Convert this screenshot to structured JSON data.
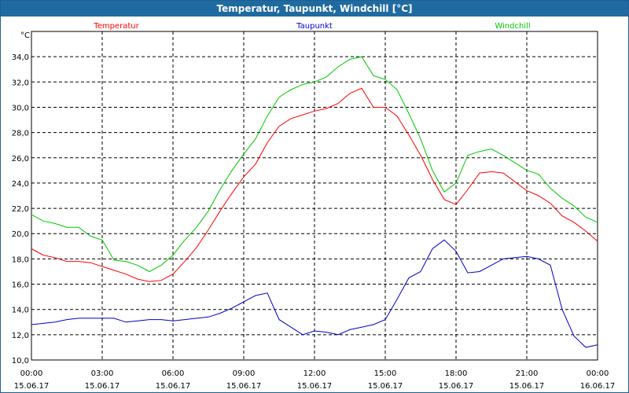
{
  "chart_data": {
    "type": "line",
    "title": "Temperatur, Taupunkt, Windchill [°C]",
    "ylabel": "°C",
    "xlabel": "",
    "ylim": [
      10,
      36
    ],
    "xlim": [
      0,
      24
    ],
    "grid": true,
    "y_ticks": [
      "10,0",
      "12,0",
      "14,0",
      "16,0",
      "18,0",
      "20,0",
      "22,0",
      "24,0",
      "26,0",
      "28,0",
      "30,0",
      "32,0",
      "34,0"
    ],
    "x_ticks": [
      {
        "time": "00:00",
        "date": "15.06.17"
      },
      {
        "time": "03:00",
        "date": "15.06.17"
      },
      {
        "time": "06:00",
        "date": "15.06.17"
      },
      {
        "time": "09:00",
        "date": "15.06.17"
      },
      {
        "time": "12:00",
        "date": "15.06.17"
      },
      {
        "time": "15:00",
        "date": "15.06.17"
      },
      {
        "time": "18:00",
        "date": "15.06.17"
      },
      {
        "time": "21:00",
        "date": "15.06.17"
      },
      {
        "time": "00:00",
        "date": "16.06.17"
      }
    ],
    "legend": [
      "Temperatur",
      "Taupunkt",
      "Windchill"
    ],
    "series": [
      {
        "name": "Temperatur",
        "color": "#ff0000",
        "x": [
          0,
          0.5,
          1,
          1.5,
          2,
          2.5,
          3,
          3.5,
          4,
          4.5,
          5,
          5.5,
          6,
          6.5,
          7,
          7.5,
          8,
          8.5,
          9,
          9.5,
          10,
          10.5,
          11,
          11.5,
          12,
          12.5,
          13,
          13.5,
          14,
          14.5,
          15,
          15.5,
          16,
          16.5,
          17,
          17.5,
          18,
          18.5,
          19,
          19.5,
          20,
          20.5,
          21,
          21.5,
          22,
          22.5,
          23,
          23.5,
          24
        ],
        "y": [
          18.8,
          18.3,
          18.1,
          17.8,
          17.8,
          17.7,
          17.4,
          17.1,
          16.8,
          16.4,
          16.2,
          16.3,
          16.8,
          17.8,
          18.9,
          20.3,
          21.8,
          23.2,
          24.5,
          25.5,
          27.2,
          28.5,
          29.1,
          29.4,
          29.7,
          29.9,
          30.3,
          31.1,
          31.5,
          30.0,
          30.0,
          29.3,
          27.8,
          26.2,
          24.3,
          22.7,
          22.3,
          23.5,
          24.8,
          24.9,
          24.8,
          24.1,
          23.4,
          23.0,
          22.4,
          21.4,
          20.9,
          20.2,
          19.4
        ]
      },
      {
        "name": "Taupunkt",
        "color": "#0000c8",
        "x": [
          0,
          0.5,
          1,
          1.5,
          2,
          2.5,
          3,
          3.5,
          4,
          4.5,
          5,
          5.5,
          6,
          6.5,
          7,
          7.5,
          8,
          8.5,
          9,
          9.5,
          10,
          10.5,
          11,
          11.5,
          12,
          12.5,
          13,
          13.5,
          14,
          14.5,
          15,
          15.5,
          16,
          16.5,
          17,
          17.5,
          18,
          18.5,
          19,
          19.5,
          20,
          20.5,
          21,
          21.5,
          22,
          22.5,
          23,
          23.5,
          24
        ],
        "y": [
          12.8,
          12.9,
          13.0,
          13.2,
          13.3,
          13.3,
          13.3,
          13.3,
          13.0,
          13.1,
          13.2,
          13.2,
          13.1,
          13.2,
          13.3,
          13.4,
          13.7,
          14.1,
          14.6,
          15.1,
          15.3,
          13.2,
          12.6,
          12.0,
          12.3,
          12.2,
          12.0,
          12.4,
          12.6,
          12.8,
          13.2,
          14.8,
          16.5,
          17.0,
          18.8,
          19.5,
          18.6,
          16.9,
          17.0,
          17.5,
          18.0,
          18.1,
          18.2,
          18.0,
          17.5,
          14.0,
          11.9,
          11.0,
          11.2
        ]
      },
      {
        "name": "Windchill",
        "color": "#00c800",
        "x": [
          0,
          0.5,
          1,
          1.5,
          2,
          2.5,
          3,
          3.5,
          4,
          4.5,
          5,
          5.5,
          6,
          6.5,
          7,
          7.5,
          8,
          8.5,
          9,
          9.5,
          10,
          10.5,
          11,
          11.5,
          12,
          12.5,
          13,
          13.5,
          14,
          14.5,
          15,
          15.5,
          16,
          16.5,
          17,
          17.5,
          18,
          18.5,
          19,
          19.5,
          20,
          20.5,
          21,
          21.5,
          22,
          22.5,
          23,
          23.5,
          24
        ],
        "y": [
          21.5,
          21.0,
          20.8,
          20.5,
          20.5,
          19.8,
          19.5,
          17.9,
          17.8,
          17.5,
          17.0,
          17.5,
          18.3,
          19.5,
          20.5,
          21.8,
          23.5,
          25.0,
          26.3,
          27.5,
          29.3,
          30.8,
          31.4,
          31.8,
          32.0,
          32.4,
          33.2,
          33.8,
          34.0,
          32.5,
          32.2,
          31.4,
          29.5,
          27.5,
          25.0,
          23.3,
          24.0,
          26.2,
          26.5,
          26.7,
          26.2,
          25.6,
          25.0,
          24.7,
          23.6,
          22.8,
          22.2,
          21.3,
          20.9
        ]
      }
    ]
  }
}
